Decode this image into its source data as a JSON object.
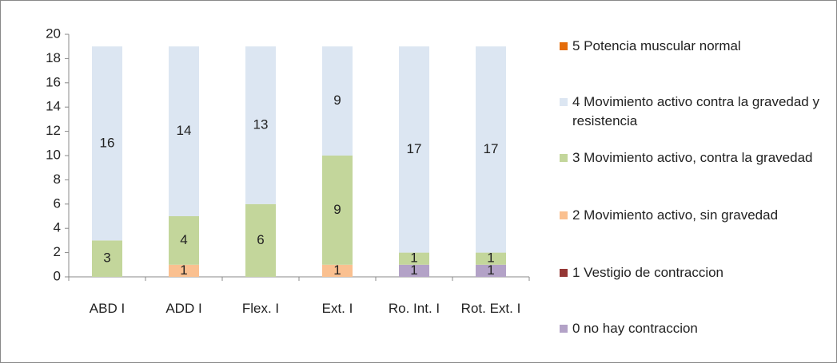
{
  "chart_data": {
    "type": "stacked_bar",
    "categories": [
      "ABD I",
      "ADD I",
      "Flex. I",
      "Ext. I",
      "Ro. Int. I",
      "Rot. Ext. I"
    ],
    "series": [
      {
        "name": "0 no hay contraccion",
        "color": "#b3a2c7",
        "values": [
          0,
          0,
          0,
          0,
          1,
          1
        ]
      },
      {
        "name": "1 Vestigio de contraccion",
        "color": "#953735",
        "values": [
          0,
          0,
          0,
          0,
          0,
          0
        ]
      },
      {
        "name": "2 Movimiento activo, sin gravedad",
        "color": "#fac090",
        "values": [
          0,
          1,
          0,
          1,
          0,
          0
        ]
      },
      {
        "name": "3 Movimiento activo, contra la gravedad",
        "color": "#c3d69b",
        "values": [
          3,
          4,
          6,
          9,
          1,
          1
        ]
      },
      {
        "name": "4 Movimiento activo contra la gravedad y resistencia",
        "color": "#dce6f2",
        "values": [
          16,
          14,
          13,
          9,
          17,
          17
        ]
      },
      {
        "name": "5 Potencia muscular normal",
        "color": "#e46c0a",
        "values": [
          0,
          0,
          0,
          0,
          0,
          0
        ]
      }
    ],
    "ylim": [
      0,
      20
    ],
    "yticks": [
      0,
      2,
      4,
      6,
      8,
      10,
      12,
      14,
      16,
      18,
      20
    ],
    "grid": false,
    "legend": "right"
  }
}
